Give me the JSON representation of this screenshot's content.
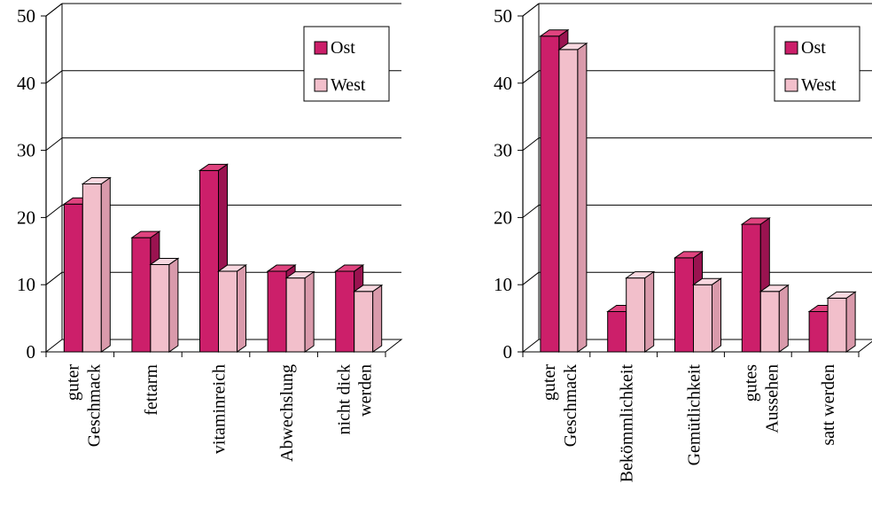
{
  "colors": {
    "ost_front": "#cc1f6a",
    "ost_side": "#9a1350",
    "ost_top": "#e0447f",
    "west_front": "#f2bfcb",
    "west_side": "#d99aab",
    "west_top": "#f8d8e0",
    "axis": "#000000",
    "grid": "#000000",
    "background": "#ffffff"
  },
  "chart_data": [
    {
      "type": "bar",
      "ylim": [
        0,
        50
      ],
      "yticks": [
        "0",
        "10",
        "20",
        "30",
        "40",
        "50"
      ],
      "legend_position": "top-right",
      "categories": [
        {
          "lines": [
            "guter",
            "Geschmack"
          ]
        },
        {
          "lines": [
            "fettarm"
          ]
        },
        {
          "lines": [
            "vitaminreich"
          ]
        },
        {
          "lines": [
            "Abwechslung"
          ]
        },
        {
          "lines": [
            "nicht dick",
            "werden"
          ]
        }
      ],
      "series": [
        {
          "name": "Ost",
          "values": [
            22,
            17,
            27,
            12,
            12
          ]
        },
        {
          "name": "West",
          "values": [
            25,
            13,
            12,
            11,
            9
          ]
        }
      ]
    },
    {
      "type": "bar",
      "ylim": [
        0,
        50
      ],
      "yticks": [
        "0",
        "10",
        "20",
        "30",
        "40",
        "50"
      ],
      "legend_position": "top-right",
      "categories": [
        {
          "lines": [
            "guter",
            "Geschmack"
          ]
        },
        {
          "lines": [
            "Bekömmlichkeit"
          ]
        },
        {
          "lines": [
            "Gemütlichkeit"
          ]
        },
        {
          "lines": [
            "gutes",
            "Aussehen"
          ]
        },
        {
          "lines": [
            "satt werden"
          ]
        }
      ],
      "series": [
        {
          "name": "Ost",
          "values": [
            47,
            6,
            14,
            19,
            6
          ]
        },
        {
          "name": "West",
          "values": [
            45,
            11,
            10,
            9,
            8
          ]
        }
      ]
    }
  ]
}
